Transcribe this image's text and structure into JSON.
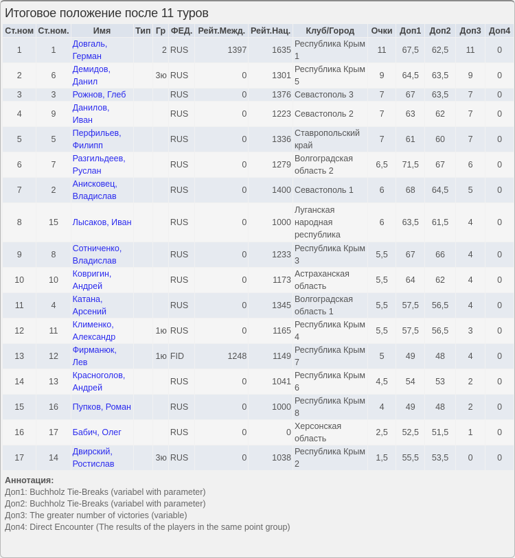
{
  "title": "Итоговое положение после 11 туров",
  "headers": [
    "Ст.ном",
    "Ст.ном.",
    "Имя",
    "Тип",
    "Гр",
    "ФЕД.",
    "Рейт.Межд.",
    "Рейт.Нац.",
    "Клуб/Город",
    "Очки",
    "Доп1",
    "Доп2",
    "Доп3",
    "Доп4"
  ],
  "rows": [
    [
      "1",
      "1",
      "Довгаль, Герман",
      "",
      "2",
      "RUS",
      "1397",
      "1635",
      "Республика Крым 1",
      "11",
      "67,5",
      "62,5",
      "11",
      "0"
    ],
    [
      "2",
      "6",
      "Демидов, Данил",
      "",
      "3ю",
      "RUS",
      "0",
      "1301",
      "Республика Крым 5",
      "9",
      "64,5",
      "63,5",
      "9",
      "0"
    ],
    [
      "3",
      "3",
      "Рожнов, Глеб",
      "",
      "",
      "RUS",
      "0",
      "1376",
      "Севастополь 3",
      "7",
      "67",
      "63,5",
      "7",
      "0"
    ],
    [
      "4",
      "9",
      "Данилов, Иван",
      "",
      "",
      "RUS",
      "0",
      "1223",
      "Севастополь 2",
      "7",
      "63",
      "62",
      "7",
      "0"
    ],
    [
      "5",
      "5",
      "Перфильев, Филипп",
      "",
      "",
      "RUS",
      "0",
      "1336",
      "Ставропольский край",
      "7",
      "61",
      "60",
      "7",
      "0"
    ],
    [
      "6",
      "7",
      "Разгильдеев, Руслан",
      "",
      "",
      "RUS",
      "0",
      "1279",
      "Волгоградская область 2",
      "6,5",
      "71,5",
      "67",
      "6",
      "0"
    ],
    [
      "7",
      "2",
      "Анисковец, Владислав",
      "",
      "",
      "RUS",
      "0",
      "1400",
      "Севастополь 1",
      "6",
      "68",
      "64,5",
      "5",
      "0"
    ],
    [
      "8",
      "15",
      "Лысаков, Иван",
      "",
      "",
      "RUS",
      "0",
      "1000",
      "Луганская народная республика",
      "6",
      "63,5",
      "61,5",
      "4",
      "0"
    ],
    [
      "9",
      "8",
      "Сотниченко, Владислав",
      "",
      "",
      "RUS",
      "0",
      "1233",
      "Республика Крым 3",
      "5,5",
      "67",
      "66",
      "4",
      "0"
    ],
    [
      "10",
      "10",
      "Ковригин, Андрей",
      "",
      "",
      "RUS",
      "0",
      "1173",
      "Астраханская область",
      "5,5",
      "64",
      "62",
      "4",
      "0"
    ],
    [
      "11",
      "4",
      "Катана, Арсений",
      "",
      "",
      "RUS",
      "0",
      "1345",
      "Волгоградская область 1",
      "5,5",
      "57,5",
      "56,5",
      "4",
      "0"
    ],
    [
      "12",
      "11",
      "Клименко, Александр",
      "",
      "1ю",
      "RUS",
      "0",
      "1165",
      "Республика Крым 4",
      "5,5",
      "57,5",
      "56,5",
      "3",
      "0"
    ],
    [
      "13",
      "12",
      "Фирманюк, Лев",
      "",
      "1ю",
      "FID",
      "1248",
      "1149",
      "Республика Крым 7",
      "5",
      "49",
      "48",
      "4",
      "0"
    ],
    [
      "14",
      "13",
      "Красноголов, Андрей",
      "",
      "",
      "RUS",
      "0",
      "1041",
      "Республика Крым 6",
      "4,5",
      "54",
      "53",
      "2",
      "0"
    ],
    [
      "15",
      "16",
      "Пупков, Роман",
      "",
      "",
      "RUS",
      "0",
      "1000",
      "Республика Крым 8",
      "4",
      "49",
      "48",
      "2",
      "0"
    ],
    [
      "16",
      "17",
      "Бабич, Олег",
      "",
      "",
      "RUS",
      "0",
      "0",
      "Херсонская область",
      "2,5",
      "52,5",
      "51,5",
      "1",
      "0"
    ],
    [
      "17",
      "14",
      "Двирский, Ростислав",
      "",
      "3ю",
      "RUS",
      "0",
      "1038",
      "Республика Крым 2",
      "1,5",
      "55,5",
      "53,5",
      "0",
      "0"
    ]
  ],
  "annotation": {
    "title": "Аннотация:",
    "lines": [
      "Доп1: Buchholz Tie-Breaks (variabel with parameter)",
      "Доп2: Buchholz Tie-Breaks (variabel with parameter)",
      "Доп3: The greater number of victories (variable)",
      "Доп4: Direct Encounter (The results of the players in the same point group)"
    ]
  }
}
